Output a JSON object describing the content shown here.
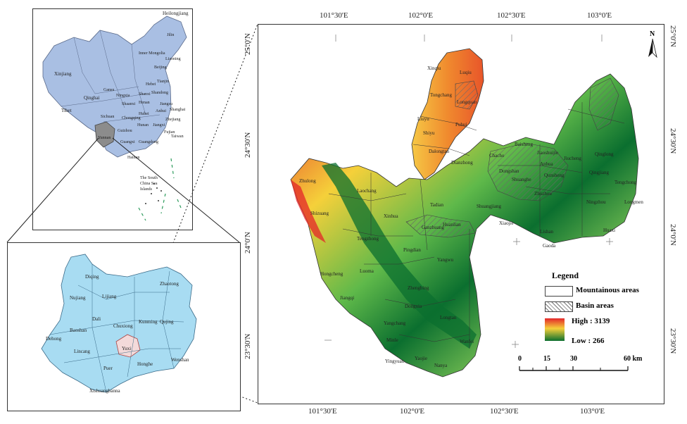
{
  "china_map": {
    "labels": [
      "Heilongjiang",
      "Jilin",
      "Inner Mongolia",
      "Liaoning",
      "Beijing",
      "Xinjiang",
      "Gansu",
      "Tianjin",
      "Hebei",
      "Ningxia",
      "Shanxi",
      "Shandong",
      "Qinghai",
      "Shaanxi",
      "Henan",
      "Jiangsu",
      "Anhui",
      "Shanghai",
      "Tibet",
      "Sichuan",
      "Chongqing",
      "Hubei",
      "Zhejiang",
      "Hunan",
      "Jiangxi",
      "Guizhou",
      "Fujian",
      "Yunnan",
      "Guangxi",
      "Guangdong",
      "Taiwan",
      "Hainan",
      "The South China Sea Islands"
    ],
    "highlight": "Yunnan"
  },
  "yunnan_map": {
    "labels": [
      "Diqing",
      "Nujiang",
      "Lijiang",
      "Zhaotong",
      "Dali",
      "Baoshan",
      "Chuxiong",
      "Kunming",
      "Qujing",
      "Dehong",
      "Lincang",
      "Yuxi",
      "Honghe",
      "Wenshan",
      "Puer",
      "Xishuangbanna"
    ],
    "highlight": "Yuxi"
  },
  "main_map": {
    "top_ticks": [
      "101°30'E",
      "102°0'E",
      "102°30'E",
      "103°0'E"
    ],
    "bottom_ticks": [
      "101°30'E",
      "102°0'E",
      "102°30'E",
      "103°0'E"
    ],
    "left_ticks": [
      "25°0'N",
      "24°30'N",
      "24°0'N",
      "23°30'N"
    ],
    "right_ticks": [
      "25°0'N",
      "24°30'N",
      "24°0'N",
      "23°30'N"
    ],
    "north": "N",
    "counties": [
      "Xinqiu",
      "Luqiu",
      "Tongchang",
      "Longquan",
      "Liuyu",
      "Puhui",
      "Shiyu",
      "Dalongtan",
      "Dianzhong",
      "Chacho",
      "Baisheng",
      "Jiaoshuijie",
      "Jiucheng",
      "Anhua",
      "Dongshan",
      "Shuanghe",
      "Qunsheng",
      "Zhulong",
      "Laochang",
      "Shuangjiang",
      "Xinhua",
      "Tadian",
      "Huanlian",
      "Xiaojie",
      "Qingjiang",
      "Shizuang",
      "Pingdian",
      "Yangwu",
      "Tengchong",
      "Qinglong",
      "Ningzhou",
      "Huaxi",
      "Lishan",
      "Gaoda",
      "Zhuzhou",
      "Ganzhuang",
      "Longtan",
      "Dongxia",
      "Yangchang",
      "Minle",
      "Jiangqi",
      "Yingyuan",
      "Yaojie",
      "Nanya",
      "Wanfei",
      "Longmen",
      "Hongcheng",
      "Tengzhong",
      "Luoma",
      "Zhengbing"
    ],
    "colors": {
      "high": "#e3262a",
      "mid": "#f5d03a",
      "low": "#0b6f2f",
      "hatch": "#8a8a8a"
    }
  },
  "legend": {
    "title": "Legend",
    "mountain": "Mountainous areas",
    "basin": "Basin areas",
    "high": "High : 3139",
    "low": "Low : 266"
  },
  "scale_bar": {
    "labels": [
      "0",
      "15",
      "30",
      "60 km"
    ]
  }
}
